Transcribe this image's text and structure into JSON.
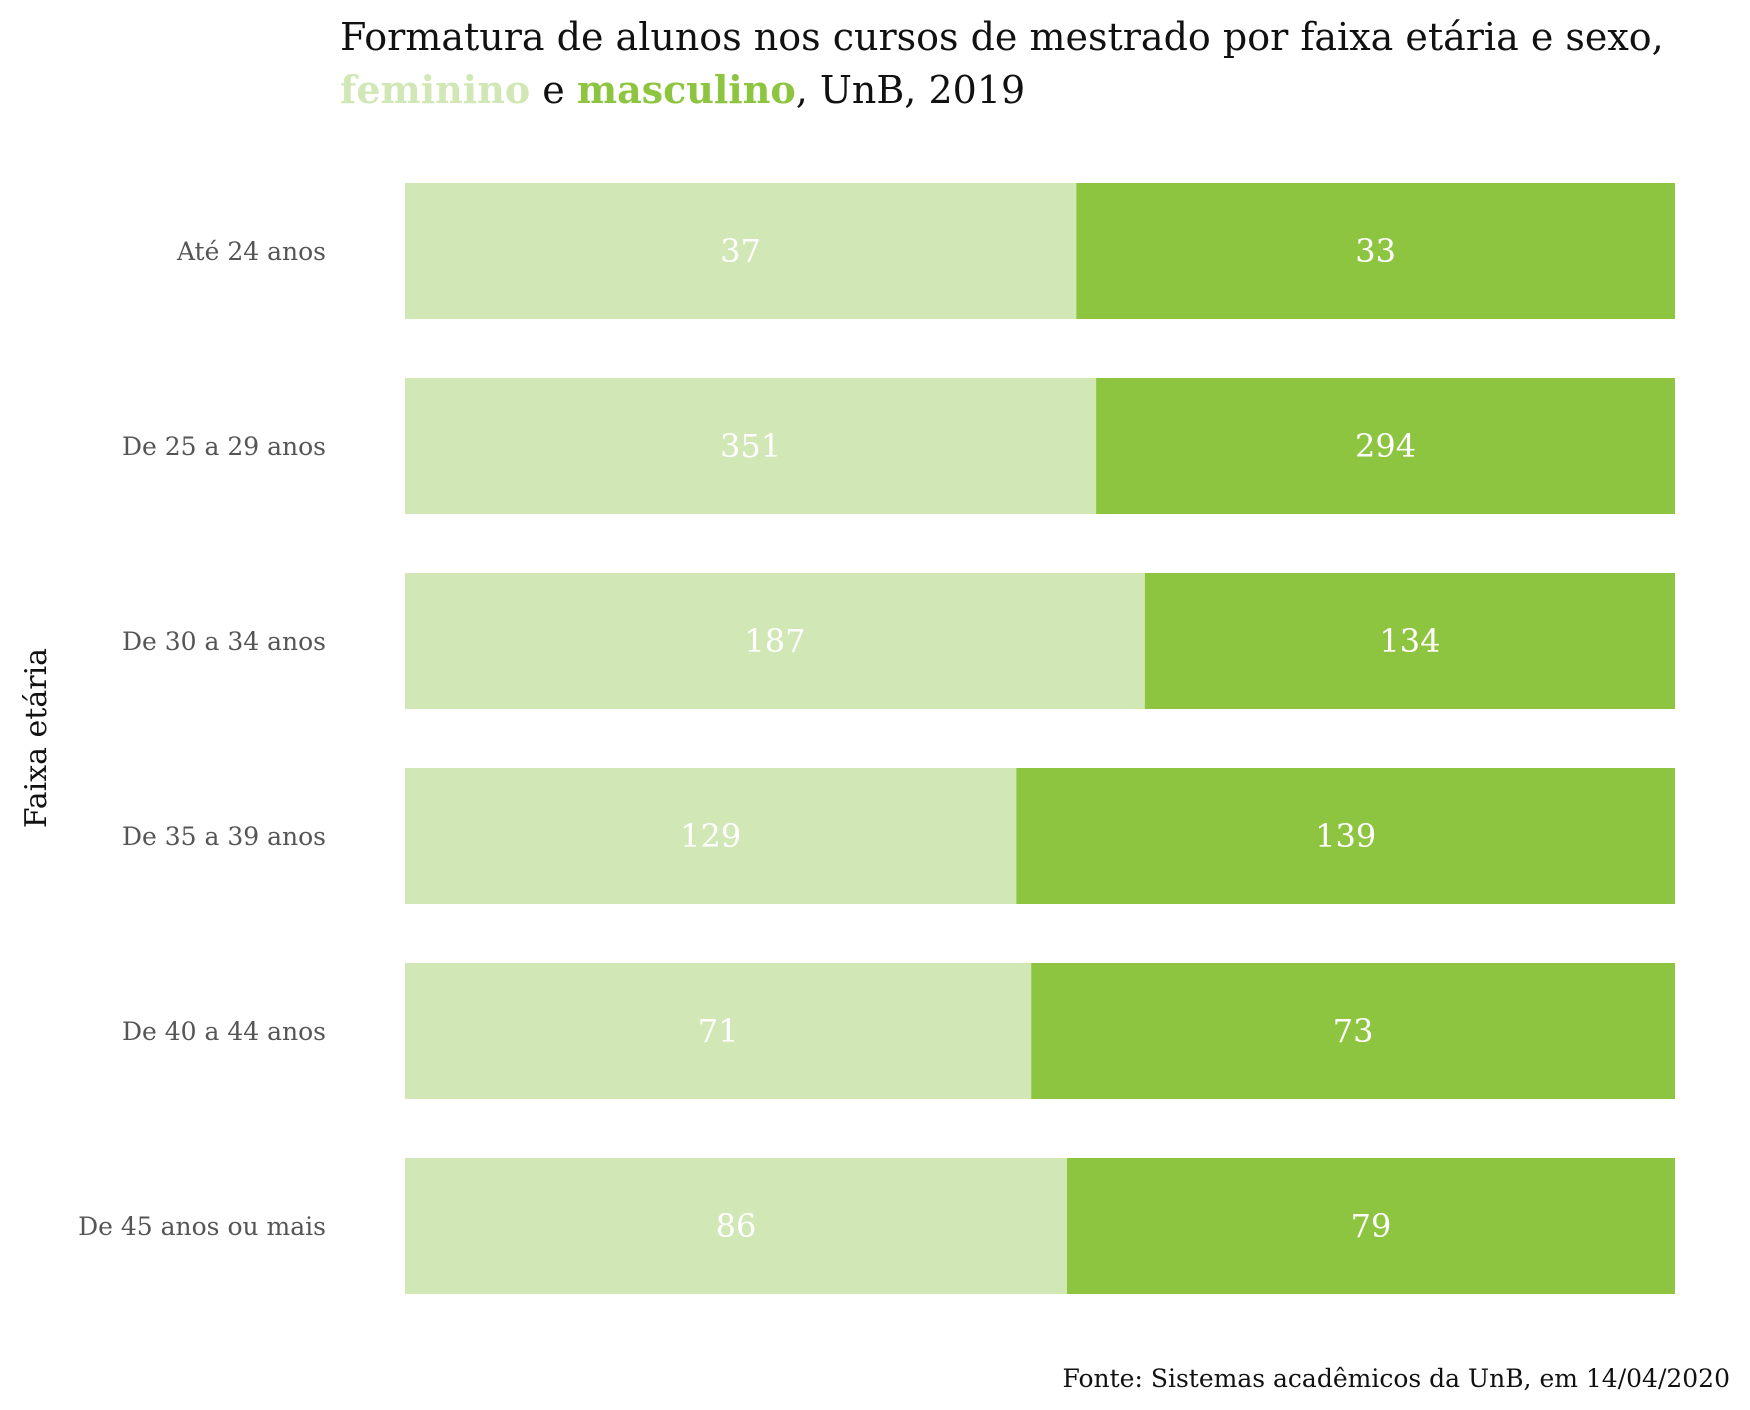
{
  "title": {
    "line1": "Formatura de alunos nos cursos de mestrado por faixa etária e sexo,",
    "feminino": "feminino",
    "connector": " e ",
    "masculino": "masculino",
    "suffix": ", UnB, 2019"
  },
  "source": "Fonte: Sistemas acadêmicos da UnB, em 14/04/2020",
  "colors": {
    "feminino": "#d1e7b5",
    "masculino": "#8dc540",
    "label": "#ffffff",
    "category_text": "#555555"
  },
  "chart_data": {
    "type": "bar",
    "orientation": "horizontal",
    "stacking": "percent",
    "title": "Formatura de alunos nos cursos de mestrado por faixa etária e sexo, feminino e masculino, UnB, 2019",
    "xlabel": "",
    "ylabel": "Faixa etária",
    "categories": [
      "Até 24 anos",
      "De 25 a 29 anos",
      "De 30 a 34 anos",
      "De 35 a 39 anos",
      "De 40 a 44 anos",
      "De 45 anos ou mais"
    ],
    "series": [
      {
        "name": "feminino",
        "values": [
          37,
          351,
          187,
          129,
          71,
          86
        ]
      },
      {
        "name": "masculino",
        "values": [
          33,
          294,
          134,
          139,
          73,
          79
        ]
      }
    ],
    "grid": false,
    "legend": "in title"
  }
}
